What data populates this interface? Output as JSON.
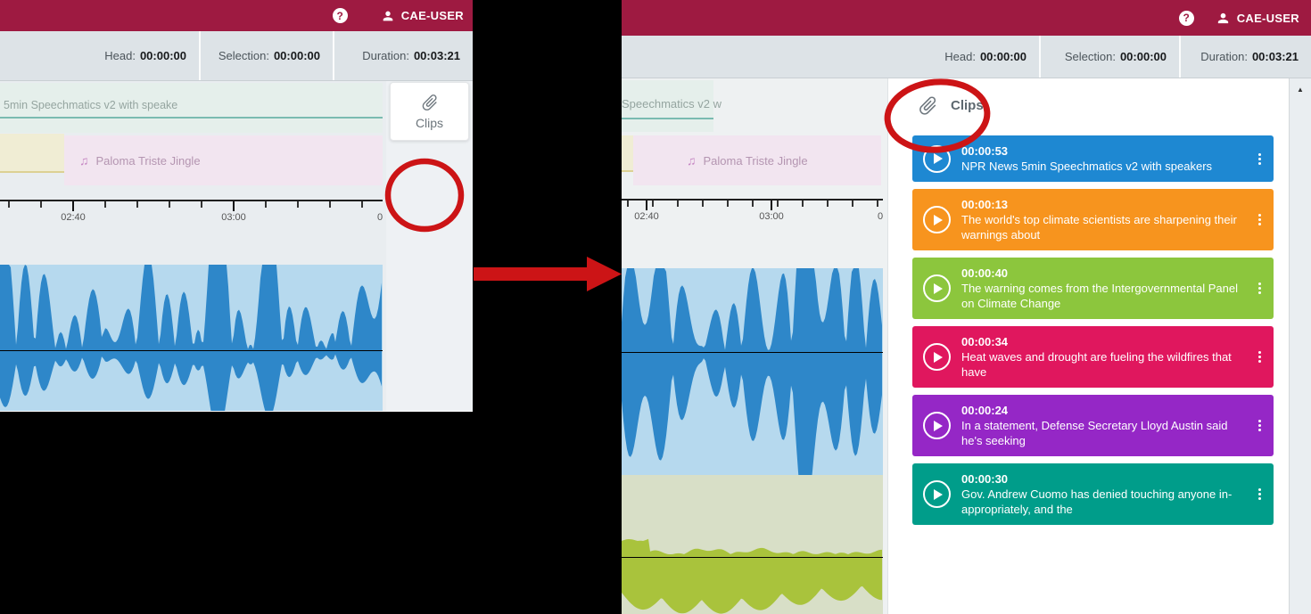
{
  "left_window": {
    "header": {
      "help_icon": "?",
      "username": "CAE-USER"
    },
    "toolbar": {
      "head_label": "Head:",
      "head_value": "00:00:00",
      "selection_label": "Selection:",
      "selection_value": "00:00:00",
      "duration_label": "Duration:",
      "duration_value": "00:03:21"
    },
    "tracks": {
      "speech_label": "5min Speechmatics v2 with speake",
      "jingle_note": "♫",
      "jingle_label": "Paloma Triste Jingle"
    },
    "timeline": {
      "tick_1": "02:40",
      "tick_2": "03:00",
      "tick_3": "0"
    },
    "clips_button_label": "Clips"
  },
  "right_window": {
    "header": {
      "help_icon": "?",
      "username": "CAE-USER"
    },
    "toolbar": {
      "head_label": "Head:",
      "head_value": "00:00:00",
      "selection_label": "Selection:",
      "selection_value": "00:00:00",
      "duration_label": "Duration:",
      "duration_value": "00:03:21"
    },
    "tracks": {
      "speech_label": "Speechmatics v2 w",
      "jingle_note": "♫",
      "jingle_label": "Paloma Triste Jingle"
    },
    "timeline": {
      "tick_1": "02:40",
      "tick_2": "03:00",
      "tick_3": "0"
    },
    "clips_panel": {
      "title": "Clips",
      "clips": [
        {
          "time": "00:00:53",
          "title": "NPR News 5min Speechmatics v2 with speakers",
          "color": "#1e88d2"
        },
        {
          "time": "00:00:13",
          "title": "The world's top climate scientists are sharpening their warnings about",
          "color": "#f7941e"
        },
        {
          "time": "00:00:40",
          "title": "The warning comes from the Intergovernmental Panel on Climate Change",
          "color": "#8cc63d"
        },
        {
          "time": "00:00:34",
          "title": "Heat waves and drought are fueling the wildfires that have",
          "color": "#e0175e"
        },
        {
          "time": "00:00:24",
          "title": "In a statement, Defense Secretary Lloyd Austin said he's seeking",
          "color": "#9527c6"
        },
        {
          "time": "00:00:30",
          "title": "Gov. Andrew Cuomo has denied touching anyone in-appropriately, and the",
          "color": "#009d8a"
        }
      ]
    },
    "scrollbar": {
      "up_glyph": "▲"
    }
  },
  "colors": {
    "app_header": "#9e1a41",
    "annotation_red": "#cc1416",
    "waveform_blue": "#2e87c9",
    "waveform_green": "#a9c33c"
  }
}
